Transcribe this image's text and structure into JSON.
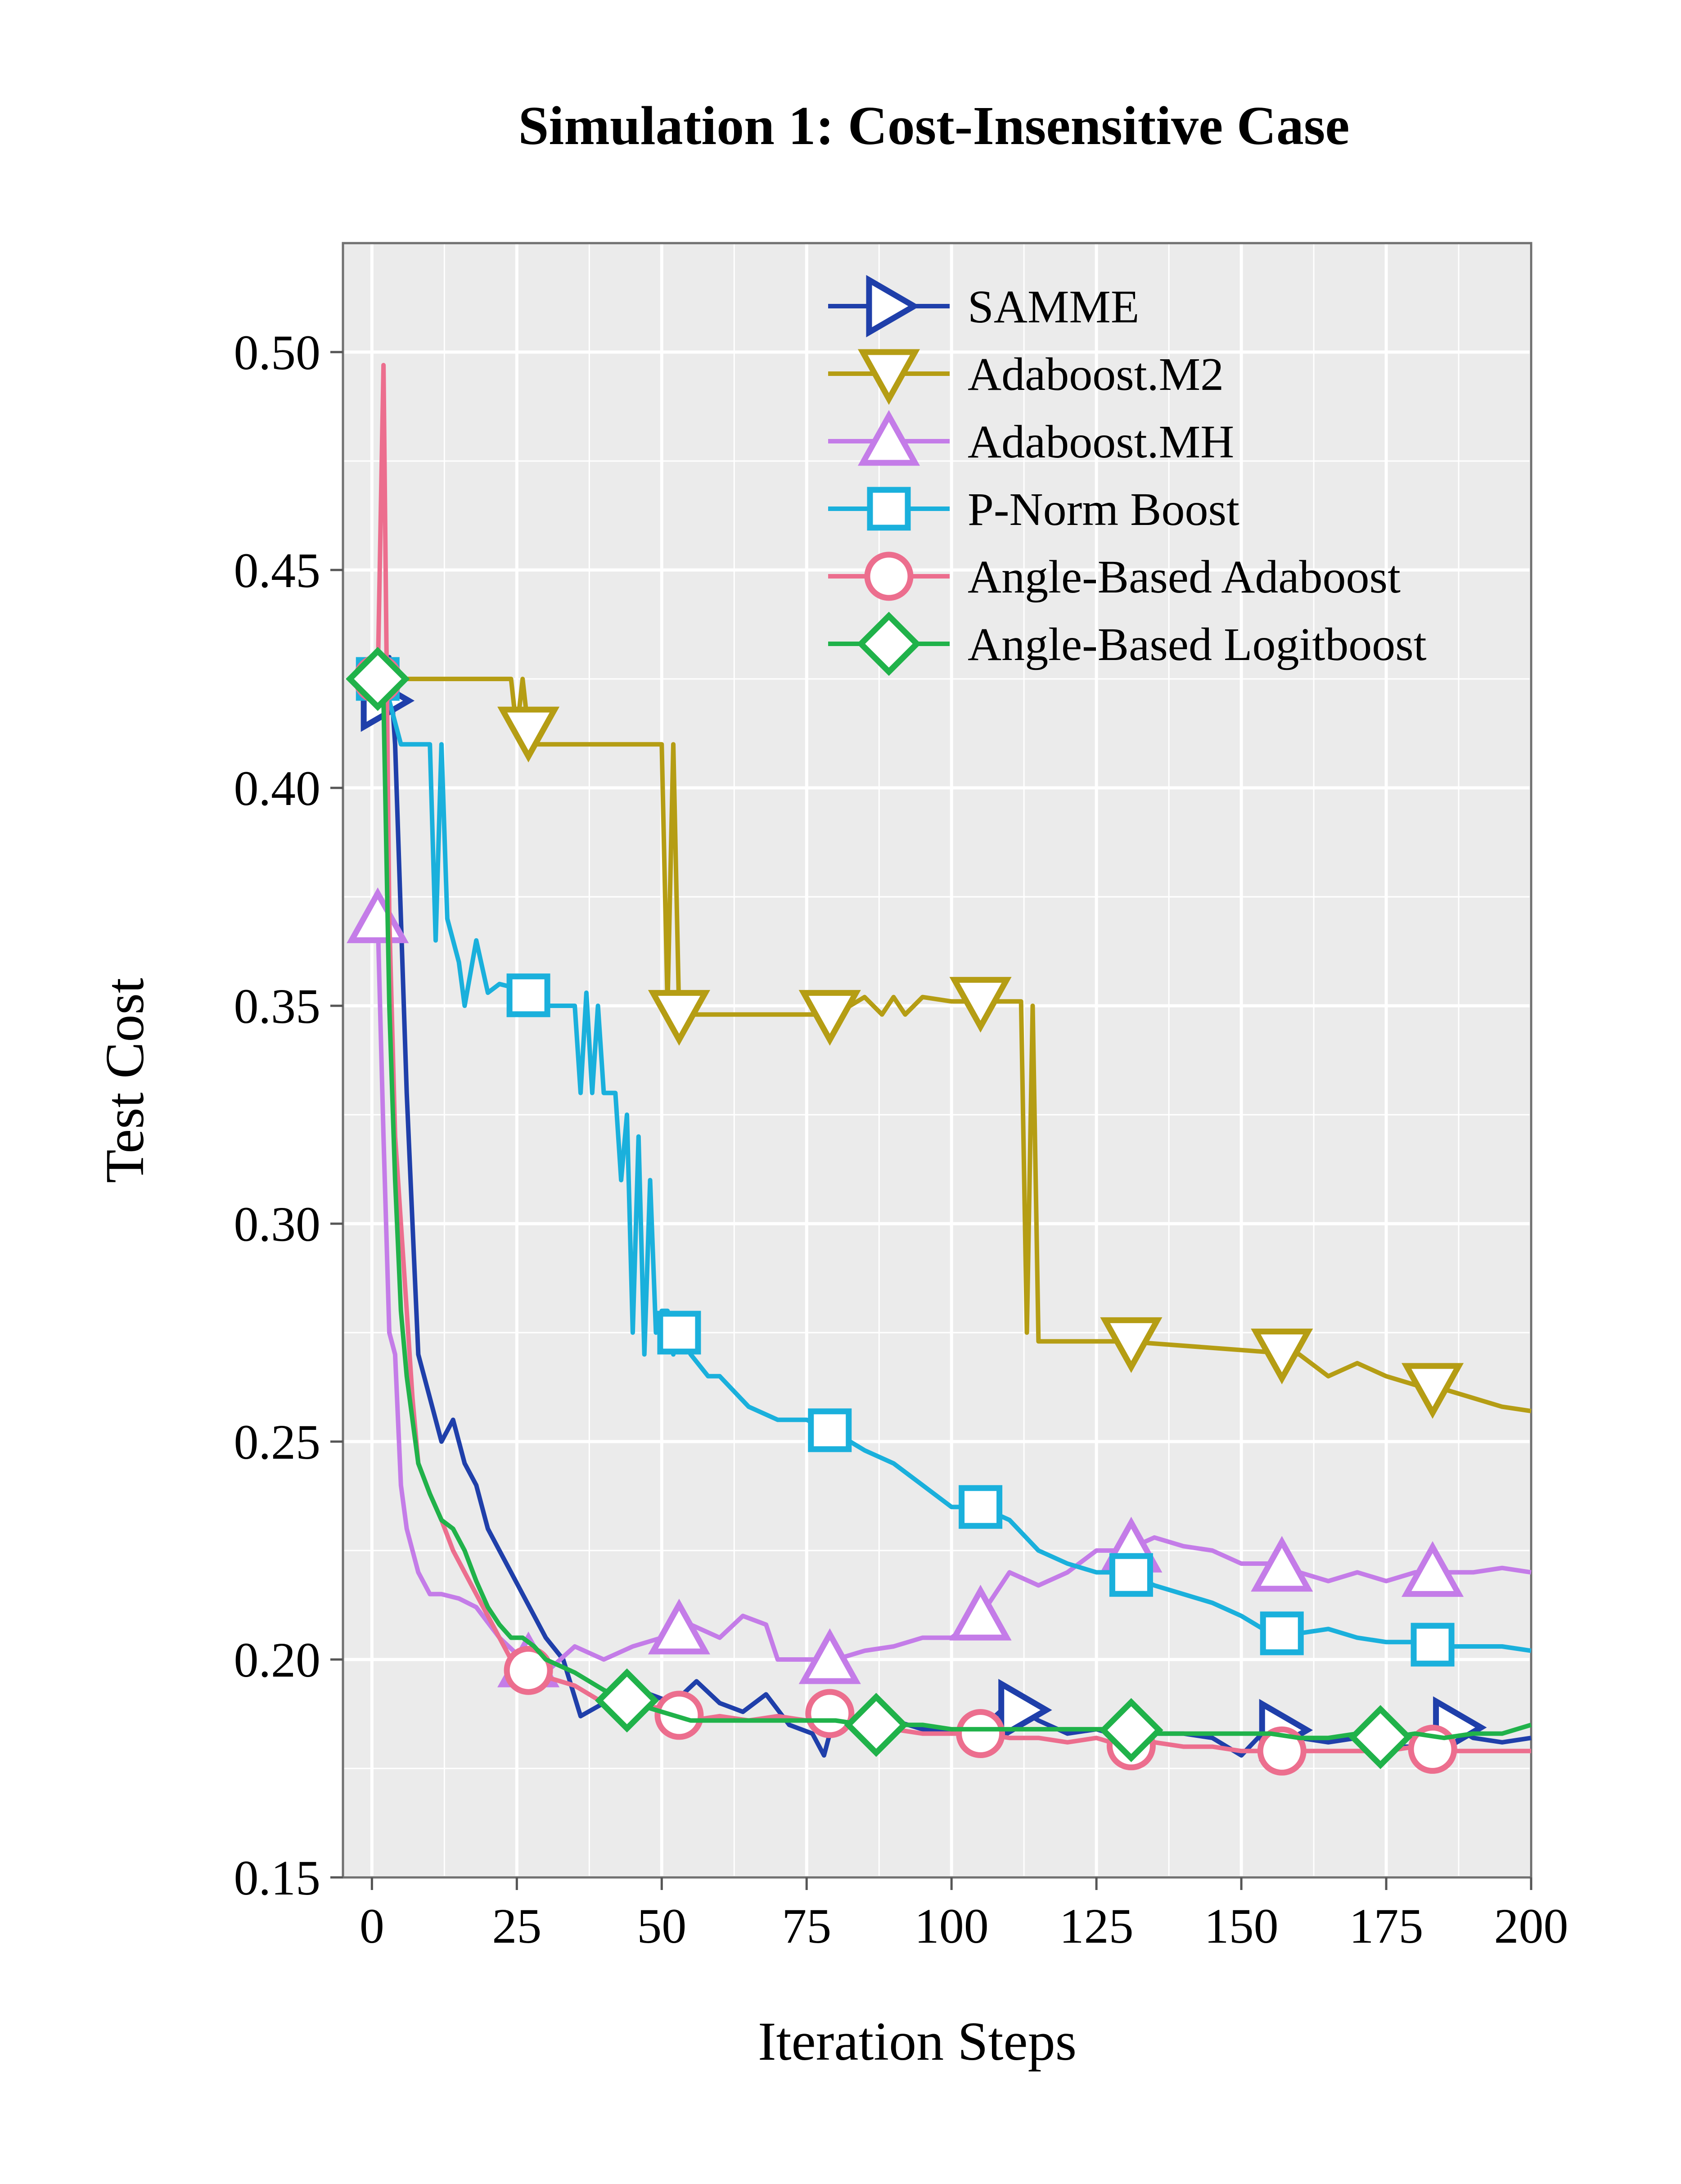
{
  "chart_data": {
    "type": "line",
    "title": "Simulation 1: Cost-Insensitive Case",
    "xlabel": "Iteration Steps",
    "ylabel": "Test Cost",
    "xlim": [
      -5,
      200
    ],
    "ylim": [
      0.15,
      0.525
    ],
    "xticks": [
      0,
      25,
      50,
      75,
      100,
      125,
      150,
      175,
      200
    ],
    "xtick_labels": [
      "0",
      "25",
      "50",
      "75",
      "100",
      "125",
      "150",
      "175",
      "200"
    ],
    "yticks": [
      0.15,
      0.2,
      0.25,
      0.3,
      0.35,
      0.4,
      0.45,
      0.5
    ],
    "ytick_labels": [
      "0.15",
      "0.20",
      "0.25",
      "0.30",
      "0.35",
      "0.40",
      "0.45",
      "0.50"
    ],
    "grid": true,
    "legend_position": "top-right",
    "series": [
      {
        "name": "SAMME",
        "color": "#1f3faa",
        "marker": "triangle-right",
        "x": [
          0,
          1,
          2,
          3,
          4,
          5,
          6,
          7,
          8,
          10,
          12,
          14,
          16,
          18,
          20,
          22,
          24,
          26,
          28,
          30,
          33,
          36,
          40,
          44,
          48,
          52,
          56,
          60,
          64,
          68,
          72,
          76,
          78,
          80,
          85,
          90,
          95,
          100,
          105,
          110,
          115,
          120,
          125,
          130,
          135,
          140,
          145,
          150,
          155,
          160,
          165,
          170,
          175,
          180,
          185,
          190,
          195,
          200
        ],
        "y": [
          0.425,
          0.43,
          0.42,
          0.43,
          0.41,
          0.37,
          0.33,
          0.3,
          0.27,
          0.26,
          0.25,
          0.255,
          0.245,
          0.24,
          0.23,
          0.225,
          0.22,
          0.215,
          0.21,
          0.205,
          0.2,
          0.187,
          0.19,
          0.195,
          0.192,
          0.19,
          0.195,
          0.19,
          0.188,
          0.192,
          0.185,
          0.183,
          0.178,
          0.188,
          0.185,
          0.186,
          0.184,
          0.183,
          0.184,
          0.19,
          0.186,
          0.183,
          0.184,
          0.182,
          0.183,
          0.183,
          0.182,
          0.178,
          0.185,
          0.182,
          0.181,
          0.182,
          0.18,
          0.18,
          0.186,
          0.182,
          0.181,
          0.182
        ],
        "marker_x": [
          2,
          112,
          157,
          187
        ]
      },
      {
        "name": "Adaboost.M2",
        "color": "#b59d14",
        "marker": "triangle-down",
        "x": [
          0,
          24,
          25,
          26,
          27,
          28,
          50,
          51,
          52,
          53,
          55,
          70,
          80,
          85,
          88,
          90,
          92,
          95,
          100,
          112,
          113,
          114,
          115,
          116,
          130,
          150,
          160,
          165,
          170,
          175,
          180,
          185,
          190,
          195,
          200
        ],
        "y": [
          0.425,
          0.425,
          0.413,
          0.425,
          0.413,
          0.41,
          0.41,
          0.35,
          0.41,
          0.348,
          0.348,
          0.348,
          0.348,
          0.352,
          0.348,
          0.352,
          0.348,
          0.352,
          0.351,
          0.351,
          0.275,
          0.35,
          0.273,
          0.273,
          0.273,
          0.271,
          0.27,
          0.265,
          0.268,
          0.265,
          0.263,
          0.262,
          0.26,
          0.258,
          0.257
        ],
        "marker_x": [
          27,
          53,
          79,
          105,
          131,
          157,
          183
        ]
      },
      {
        "name": "Adaboost.MH",
        "color": "#c47ce8",
        "marker": "triangle-up",
        "x": [
          0,
          1,
          2,
          3,
          4,
          5,
          6,
          7,
          8,
          10,
          12,
          15,
          18,
          22,
          26,
          30,
          35,
          40,
          45,
          50,
          55,
          60,
          64,
          68,
          70,
          75,
          80,
          85,
          90,
          95,
          100,
          105,
          110,
          115,
          120,
          125,
          130,
          135,
          140,
          145,
          150,
          155,
          160,
          165,
          170,
          175,
          180,
          185,
          190,
          195,
          200
        ],
        "y": [
          0.37,
          0.37,
          0.32,
          0.275,
          0.27,
          0.24,
          0.23,
          0.225,
          0.22,
          0.215,
          0.215,
          0.214,
          0.212,
          0.205,
          0.2,
          0.197,
          0.203,
          0.2,
          0.203,
          0.205,
          0.208,
          0.205,
          0.21,
          0.208,
          0.2,
          0.2,
          0.2,
          0.202,
          0.203,
          0.205,
          0.205,
          0.21,
          0.22,
          0.217,
          0.22,
          0.225,
          0.225,
          0.228,
          0.226,
          0.225,
          0.222,
          0.222,
          0.22,
          0.218,
          0.22,
          0.218,
          0.22,
          0.22,
          0.22,
          0.221,
          0.22
        ],
        "marker_x": [
          1,
          27,
          53,
          79,
          105,
          131,
          157,
          183
        ]
      },
      {
        "name": "P-Norm Boost",
        "color": "#1ab0dc",
        "marker": "square",
        "x": [
          0,
          1,
          2,
          5,
          7,
          10,
          11,
          12,
          13,
          15,
          16,
          18,
          20,
          22,
          25,
          30,
          35,
          36,
          37,
          38,
          39,
          40,
          42,
          43,
          44,
          45,
          46,
          47,
          48,
          49,
          50,
          51,
          52,
          53,
          55,
          58,
          60,
          65,
          70,
          75,
          80,
          85,
          90,
          95,
          100,
          105,
          110,
          115,
          120,
          125,
          130,
          135,
          140,
          145,
          150,
          155,
          160,
          165,
          170,
          175,
          180,
          185,
          190,
          195,
          200
        ],
        "y": [
          0.425,
          0.425,
          0.425,
          0.41,
          0.41,
          0.41,
          0.365,
          0.41,
          0.37,
          0.36,
          0.35,
          0.365,
          0.353,
          0.355,
          0.354,
          0.35,
          0.35,
          0.33,
          0.353,
          0.33,
          0.35,
          0.33,
          0.33,
          0.31,
          0.325,
          0.275,
          0.32,
          0.27,
          0.31,
          0.275,
          0.28,
          0.28,
          0.27,
          0.275,
          0.27,
          0.265,
          0.265,
          0.258,
          0.255,
          0.255,
          0.252,
          0.248,
          0.245,
          0.24,
          0.235,
          0.235,
          0.232,
          0.225,
          0.222,
          0.22,
          0.22,
          0.217,
          0.215,
          0.213,
          0.21,
          0.206,
          0.206,
          0.207,
          0.205,
          0.204,
          0.204,
          0.203,
          0.203,
          0.203,
          0.202
        ],
        "marker_x": [
          1,
          27,
          53,
          79,
          105,
          131,
          157,
          183
        ]
      },
      {
        "name": "Angle-Based Adaboost",
        "color": "#ec6e8e",
        "marker": "circle",
        "x": [
          0,
          1,
          2,
          3,
          4,
          5,
          6,
          7,
          8,
          10,
          12,
          14,
          16,
          18,
          20,
          22,
          24,
          26,
          28,
          30,
          35,
          40,
          45,
          50,
          55,
          60,
          65,
          70,
          75,
          80,
          85,
          90,
          95,
          100,
          105,
          110,
          115,
          120,
          125,
          130,
          135,
          140,
          145,
          150,
          155,
          160,
          165,
          170,
          175,
          180,
          185,
          190,
          195,
          200
        ],
        "y": [
          0.425,
          0.425,
          0.497,
          0.37,
          0.32,
          0.3,
          0.28,
          0.26,
          0.245,
          0.238,
          0.232,
          0.225,
          0.22,
          0.215,
          0.21,
          0.205,
          0.2,
          0.198,
          0.197,
          0.196,
          0.194,
          0.19,
          0.189,
          0.189,
          0.186,
          0.187,
          0.186,
          0.187,
          0.186,
          0.188,
          0.185,
          0.184,
          0.183,
          0.183,
          0.183,
          0.182,
          0.182,
          0.181,
          0.182,
          0.18,
          0.181,
          0.18,
          0.18,
          0.179,
          0.179,
          0.179,
          0.179,
          0.179,
          0.179,
          0.18,
          0.179,
          0.179,
          0.179,
          0.179
        ],
        "marker_x": [
          1,
          27,
          53,
          79,
          105,
          131,
          157,
          183
        ]
      },
      {
        "name": "Angle-Based Logitboost",
        "color": "#20b24a",
        "marker": "diamond",
        "x": [
          0,
          1,
          2,
          3,
          4,
          5,
          6,
          7,
          8,
          10,
          12,
          14,
          16,
          18,
          20,
          22,
          24,
          26,
          28,
          30,
          35,
          40,
          45,
          50,
          55,
          60,
          65,
          70,
          75,
          80,
          85,
          90,
          95,
          100,
          105,
          110,
          115,
          120,
          125,
          130,
          135,
          140,
          145,
          150,
          155,
          160,
          165,
          170,
          175,
          180,
          185,
          190,
          195,
          200
        ],
        "y": [
          0.425,
          0.425,
          0.42,
          0.35,
          0.31,
          0.28,
          0.265,
          0.255,
          0.245,
          0.238,
          0.232,
          0.23,
          0.225,
          0.218,
          0.212,
          0.208,
          0.205,
          0.205,
          0.203,
          0.2,
          0.197,
          0.193,
          0.19,
          0.188,
          0.186,
          0.186,
          0.186,
          0.186,
          0.186,
          0.186,
          0.185,
          0.185,
          0.185,
          0.184,
          0.184,
          0.184,
          0.184,
          0.184,
          0.184,
          0.184,
          0.183,
          0.183,
          0.183,
          0.183,
          0.183,
          0.182,
          0.182,
          0.183,
          0.182,
          0.183,
          0.182,
          0.183,
          0.183,
          0.185
        ],
        "marker_x": [
          1,
          44,
          87,
          131,
          174
        ]
      }
    ]
  }
}
